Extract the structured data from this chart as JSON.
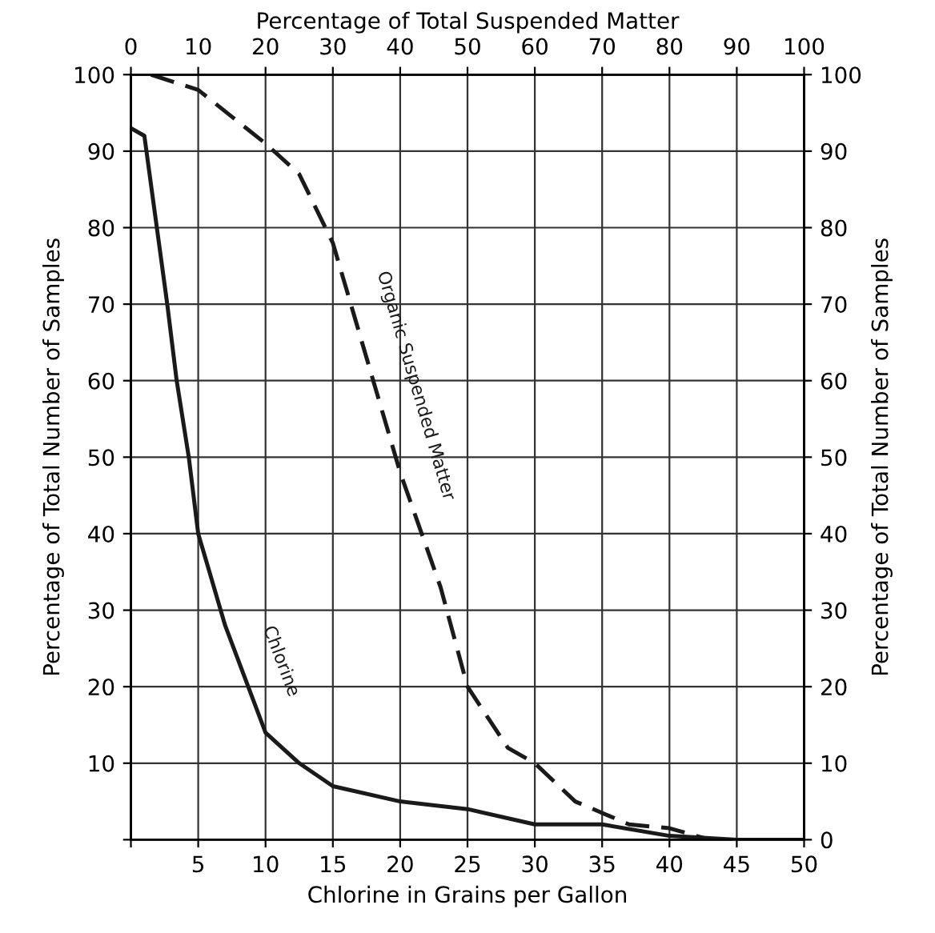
{
  "chart_data": {
    "type": "line",
    "xlabel": "Chlorine in Grains per Gallon",
    "x2label": "Percentage of Total Suspended Matter",
    "ylabel": "Percentage of Total Number of Samples",
    "y2label": "Percentage of Total Number of Samples",
    "xlim": [
      0,
      50
    ],
    "xticks": [
      {
        "value": 0,
        "label": null
      },
      5,
      10,
      15,
      20,
      25,
      30,
      35,
      40,
      45,
      50
    ],
    "x2lim": [
      0,
      100
    ],
    "x2ticks": [
      0,
      10,
      20,
      30,
      40,
      50,
      60,
      70,
      80,
      90,
      100
    ],
    "ylim": [
      0,
      100
    ],
    "yticks": [
      {
        "value": 0,
        "label": null
      },
      10,
      20,
      30,
      40,
      50,
      60,
      70,
      80,
      90,
      100
    ],
    "y2lim": [
      0,
      100
    ],
    "y2ticks": [
      0,
      10,
      20,
      30,
      40,
      50,
      60,
      70,
      80,
      90,
      100
    ],
    "grid": true,
    "series": [
      {
        "name": "Chlorine",
        "color": "#1a1a1a",
        "line_style": "solid",
        "x": [
          0,
          1,
          2.7,
          3.4,
          4.3,
          5,
          7,
          10,
          12.5,
          15,
          20,
          25,
          30,
          35,
          40,
          45,
          50
        ],
        "values": [
          93,
          92,
          70,
          60,
          50,
          40,
          28,
          14,
          10,
          7,
          5,
          4,
          2,
          2,
          0.5,
          0,
          0
        ]
      },
      {
        "name": "Organic Suspended Matter",
        "color": "#1a1a1a",
        "line_style": "dashed",
        "axis": "x2",
        "x": [
          3,
          10,
          20,
          25,
          30,
          34,
          40,
          46,
          50,
          56,
          60,
          66,
          70,
          74,
          80,
          86,
          100
        ],
        "values": [
          100,
          98,
          91,
          87,
          78,
          66,
          48,
          33,
          20,
          12,
          10,
          5,
          3.5,
          2,
          1.5,
          0,
          0
        ]
      }
    ]
  }
}
